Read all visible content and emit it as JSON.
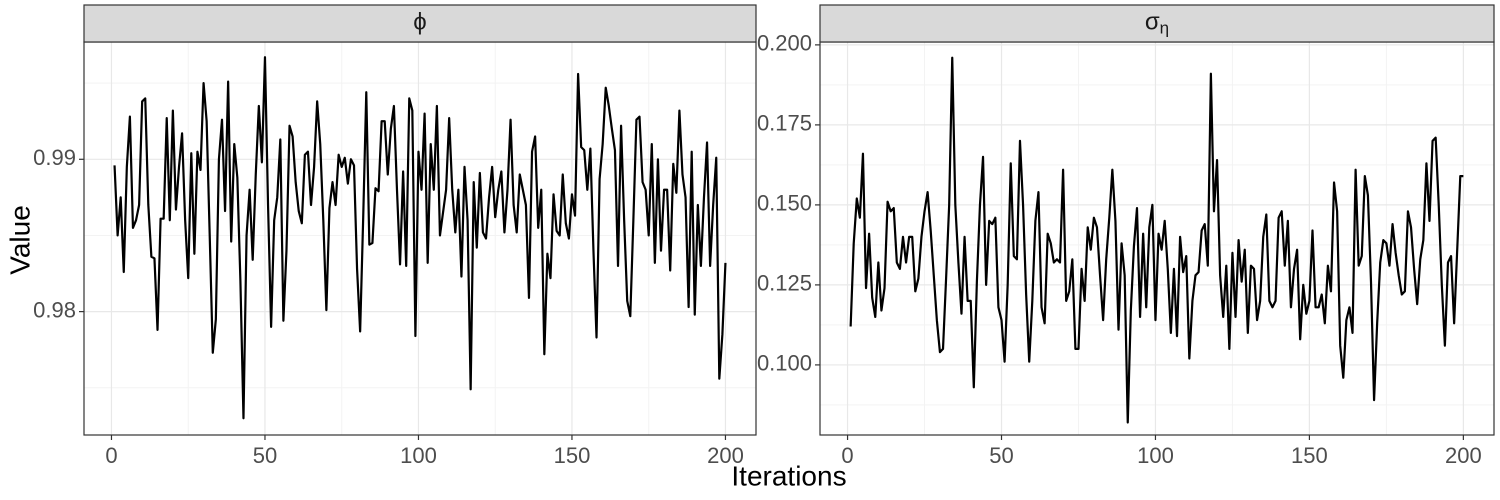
{
  "xlabel": "Iterations",
  "ylabel": "Value",
  "chart_data": [
    {
      "type": "line",
      "title": "ϕ",
      "x": [
        1,
        2,
        3,
        4,
        5,
        6,
        7,
        8,
        9,
        10,
        11,
        12,
        13,
        14,
        15,
        16,
        17,
        18,
        19,
        20,
        21,
        22,
        23,
        24,
        25,
        26,
        27,
        28,
        29,
        30,
        31,
        32,
        33,
        34,
        35,
        36,
        37,
        38,
        39,
        40,
        41,
        42,
        43,
        44,
        45,
        46,
        47,
        48,
        49,
        50,
        51,
        52,
        53,
        54,
        55,
        56,
        57,
        58,
        59,
        60,
        61,
        62,
        63,
        64,
        65,
        66,
        67,
        68,
        69,
        70,
        71,
        72,
        73,
        74,
        75,
        76,
        77,
        78,
        79,
        80,
        81,
        82,
        83,
        84,
        85,
        86,
        87,
        88,
        89,
        90,
        91,
        92,
        93,
        94,
        95,
        96,
        97,
        98,
        99,
        100,
        101,
        102,
        103,
        104,
        105,
        106,
        107,
        108,
        109,
        110,
        111,
        112,
        113,
        114,
        115,
        116,
        117,
        118,
        119,
        120,
        121,
        122,
        123,
        124,
        125,
        126,
        127,
        128,
        129,
        130,
        131,
        132,
        133,
        134,
        135,
        136,
        137,
        138,
        139,
        140,
        141,
        142,
        143,
        144,
        145,
        146,
        147,
        148,
        149,
        150,
        151,
        152,
        153,
        154,
        155,
        156,
        157,
        158,
        159,
        160,
        161,
        162,
        163,
        164,
        165,
        166,
        167,
        168,
        169,
        170,
        171,
        172,
        173,
        174,
        175,
        176,
        177,
        178,
        179,
        180,
        181,
        182,
        183,
        184,
        185,
        186,
        187,
        188,
        189,
        190,
        191,
        192,
        193,
        194,
        195,
        196,
        197,
        198,
        199,
        200
      ],
      "series": [
        {
          "color": "#000000",
          "values": [
            0.9896,
            0.985,
            0.9875,
            0.9826,
            0.9895,
            0.9928,
            0.9855,
            0.986,
            0.987,
            0.9938,
            0.994,
            0.987,
            0.9836,
            0.9835,
            0.9788,
            0.9861,
            0.9861,
            0.9927,
            0.986,
            0.9932,
            0.9867,
            0.9895,
            0.9917,
            0.986,
            0.9822,
            0.9904,
            0.9838,
            0.9905,
            0.9893,
            0.995,
            0.9925,
            0.985,
            0.9773,
            0.9795,
            0.99,
            0.9926,
            0.9866,
            0.9951,
            0.9846,
            0.991,
            0.9888,
            0.982,
            0.973,
            0.985,
            0.988,
            0.9834,
            0.989,
            0.9935,
            0.9898,
            0.9967,
            0.987,
            0.979,
            0.986,
            0.9875,
            0.9913,
            0.9794,
            0.984,
            0.9922,
            0.9915,
            0.9885,
            0.9866,
            0.9858,
            0.9903,
            0.9905,
            0.987,
            0.9895,
            0.9938,
            0.991,
            0.986,
            0.9801,
            0.9868,
            0.9885,
            0.987,
            0.9903,
            0.9895,
            0.9901,
            0.9884,
            0.99,
            0.9896,
            0.9828,
            0.9787,
            0.9862,
            0.9944,
            0.9844,
            0.9845,
            0.9881,
            0.9879,
            0.9925,
            0.9925,
            0.989,
            0.992,
            0.9935,
            0.988,
            0.9831,
            0.9892,
            0.983,
            0.994,
            0.9932,
            0.9784,
            0.9905,
            0.988,
            0.993,
            0.9832,
            0.991,
            0.988,
            0.9935,
            0.985,
            0.9865,
            0.988,
            0.9927,
            0.988,
            0.9852,
            0.988,
            0.9823,
            0.9895,
            0.986,
            0.9749,
            0.9885,
            0.9842,
            0.9891,
            0.9852,
            0.9848,
            0.9875,
            0.9895,
            0.9862,
            0.988,
            0.9892,
            0.9852,
            0.988,
            0.9926,
            0.987,
            0.9852,
            0.989,
            0.988,
            0.987,
            0.9809,
            0.9905,
            0.9915,
            0.9855,
            0.988,
            0.9772,
            0.9838,
            0.9822,
            0.9877,
            0.9853,
            0.985,
            0.989,
            0.9858,
            0.9848,
            0.9877,
            0.9863,
            0.9956,
            0.9908,
            0.9906,
            0.988,
            0.9907,
            0.984,
            0.9783,
            0.9887,
            0.991,
            0.9947,
            0.9935,
            0.992,
            0.9906,
            0.983,
            0.9922,
            0.986,
            0.9807,
            0.9797,
            0.986,
            0.9926,
            0.9928,
            0.9885,
            0.988,
            0.985,
            0.991,
            0.9832,
            0.99,
            0.984,
            0.988,
            0.988,
            0.9827,
            0.9897,
            0.9878,
            0.9932,
            0.989,
            0.9875,
            0.9803,
            0.9905,
            0.9798,
            0.987,
            0.983,
            0.9875,
            0.9911,
            0.983,
            0.987,
            0.9901,
            0.9756,
            0.9785,
            0.9832
          ]
        }
      ],
      "xlim": [
        -8.95,
        209.95
      ],
      "xticks": [
        0,
        50,
        100,
        150,
        200
      ],
      "minor_xticks": [
        25,
        75,
        125,
        175
      ],
      "ylim": [
        0.9719,
        0.9977
      ],
      "yticks": [
        0.98,
        0.99
      ],
      "minor_yticks": [
        0.975,
        0.985,
        0.995
      ],
      "grid": true
    },
    {
      "type": "line",
      "title": "σ",
      "title_sub": "η",
      "x": [
        1,
        2,
        3,
        4,
        5,
        6,
        7,
        8,
        9,
        10,
        11,
        12,
        13,
        14,
        15,
        16,
        17,
        18,
        19,
        20,
        21,
        22,
        23,
        24,
        25,
        26,
        27,
        28,
        29,
        30,
        31,
        32,
        33,
        34,
        35,
        36,
        37,
        38,
        39,
        40,
        41,
        42,
        43,
        44,
        45,
        46,
        47,
        48,
        49,
        50,
        51,
        52,
        53,
        54,
        55,
        56,
        57,
        58,
        59,
        60,
        61,
        62,
        63,
        64,
        65,
        66,
        67,
        68,
        69,
        70,
        71,
        72,
        73,
        74,
        75,
        76,
        77,
        78,
        79,
        80,
        81,
        82,
        83,
        84,
        85,
        86,
        87,
        88,
        89,
        90,
        91,
        92,
        93,
        94,
        95,
        96,
        97,
        98,
        99,
        100,
        101,
        102,
        103,
        104,
        105,
        106,
        107,
        108,
        109,
        110,
        111,
        112,
        113,
        114,
        115,
        116,
        117,
        118,
        119,
        120,
        121,
        122,
        123,
        124,
        125,
        126,
        127,
        128,
        129,
        130,
        131,
        132,
        133,
        134,
        135,
        136,
        137,
        138,
        139,
        140,
        141,
        142,
        143,
        144,
        145,
        146,
        147,
        148,
        149,
        150,
        151,
        152,
        153,
        154,
        155,
        156,
        157,
        158,
        159,
        160,
        161,
        162,
        163,
        164,
        165,
        166,
        167,
        168,
        169,
        170,
        171,
        172,
        173,
        174,
        175,
        176,
        177,
        178,
        179,
        180,
        181,
        182,
        183,
        184,
        185,
        186,
        187,
        188,
        189,
        190,
        191,
        192,
        193,
        194,
        195,
        196,
        197,
        198,
        199,
        200
      ],
      "series": [
        {
          "color": "#000000",
          "values": [
            0.112,
            0.138,
            0.152,
            0.146,
            0.166,
            0.124,
            0.141,
            0.121,
            0.115,
            0.132,
            0.117,
            0.124,
            0.151,
            0.148,
            0.149,
            0.132,
            0.13,
            0.14,
            0.132,
            0.14,
            0.14,
            0.123,
            0.127,
            0.14,
            0.148,
            0.154,
            0.142,
            0.128,
            0.114,
            0.104,
            0.105,
            0.127,
            0.15,
            0.196,
            0.15,
            0.132,
            0.116,
            0.14,
            0.12,
            0.12,
            0.093,
            0.126,
            0.15,
            0.165,
            0.125,
            0.145,
            0.144,
            0.146,
            0.118,
            0.114,
            0.101,
            0.125,
            0.163,
            0.134,
            0.133,
            0.17,
            0.15,
            0.122,
            0.101,
            0.12,
            0.145,
            0.154,
            0.118,
            0.113,
            0.141,
            0.138,
            0.132,
            0.133,
            0.132,
            0.161,
            0.12,
            0.123,
            0.133,
            0.105,
            0.105,
            0.13,
            0.12,
            0.143,
            0.136,
            0.146,
            0.143,
            0.128,
            0.114,
            0.133,
            0.146,
            0.161,
            0.145,
            0.111,
            0.138,
            0.128,
            0.082,
            0.117,
            0.137,
            0.149,
            0.115,
            0.141,
            0.118,
            0.143,
            0.15,
            0.114,
            0.141,
            0.136,
            0.145,
            0.13,
            0.11,
            0.13,
            0.109,
            0.14,
            0.129,
            0.134,
            0.102,
            0.12,
            0.128,
            0.129,
            0.142,
            0.144,
            0.131,
            0.191,
            0.148,
            0.164,
            0.128,
            0.115,
            0.131,
            0.105,
            0.135,
            0.115,
            0.139,
            0.126,
            0.136,
            0.11,
            0.131,
            0.13,
            0.114,
            0.12,
            0.14,
            0.147,
            0.12,
            0.118,
            0.12,
            0.146,
            0.148,
            0.131,
            0.145,
            0.118,
            0.13,
            0.136,
            0.108,
            0.125,
            0.116,
            0.12,
            0.142,
            0.118,
            0.118,
            0.122,
            0.113,
            0.131,
            0.123,
            0.157,
            0.148,
            0.106,
            0.096,
            0.114,
            0.118,
            0.11,
            0.161,
            0.131,
            0.134,
            0.159,
            0.153,
            0.126,
            0.089,
            0.113,
            0.132,
            0.139,
            0.138,
            0.131,
            0.144,
            0.135,
            0.128,
            0.122,
            0.123,
            0.148,
            0.143,
            0.13,
            0.119,
            0.133,
            0.139,
            0.163,
            0.145,
            0.17,
            0.171,
            0.15,
            0.125,
            0.106,
            0.132,
            0.134,
            0.113,
            0.136,
            0.159,
            0.159
          ]
        }
      ],
      "xlim": [
        -8.95,
        209.95
      ],
      "xticks": [
        0,
        50,
        100,
        150,
        200
      ],
      "minor_xticks": [
        25,
        75,
        125,
        175
      ],
      "ylim": [
        0.0781,
        0.2009
      ],
      "yticks": [
        {
          "value": 0.1,
          "label": "0.100"
        },
        0.125,
        {
          "value": 0.15,
          "label": "0.150"
        },
        0.175,
        {
          "value": 0.2,
          "label": "0.200"
        }
      ],
      "minor_yticks": [
        0.0875,
        0.1125,
        0.1375,
        0.1625,
        0.1875
      ],
      "grid": true
    }
  ]
}
